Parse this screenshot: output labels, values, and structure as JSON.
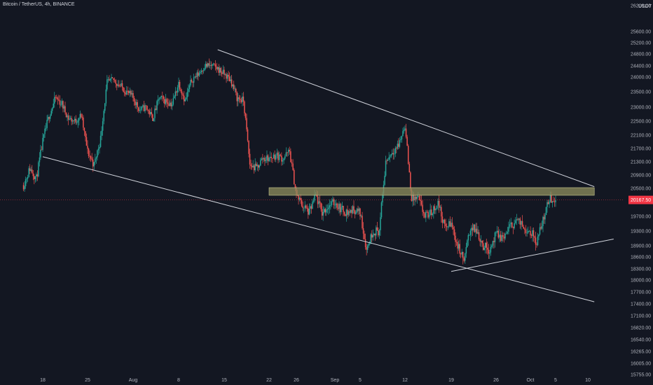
{
  "header": {
    "title": "Bitcoin / TetherUS, 4h, BINANCE",
    "currency": "USDT"
  },
  "chart_data": {
    "type": "candlestick",
    "symbol": "BTCUSDT",
    "interval": "4h",
    "exchange": "BINANCE",
    "last_price": "20167.50",
    "colors": {
      "up": "#26a69a",
      "down": "#ef5350",
      "background": "#131722",
      "trendline": "#d1d4dc",
      "zone_fill": "#8b8b5c",
      "last_price_tag": "#f23645"
    },
    "y_ticks": [
      "26200.00",
      "25600.00",
      "25200.00",
      "24800.00",
      "24400.00",
      "24000.00",
      "23500.00",
      "23000.00",
      "22500.00",
      "22100.00",
      "21700.00",
      "21300.00",
      "20900.00",
      "20500.00",
      "19700.00",
      "19300.00",
      "18900.00",
      "18600.00",
      "18300.00",
      "18000.00",
      "17700.00",
      "17400.00",
      "17100.00",
      "16820.00",
      "16540.00",
      "16265.00",
      "16005.00",
      "15755.00"
    ],
    "x_ticks": [
      "18",
      "25",
      "Aug",
      "8",
      "15",
      "22",
      "26",
      "Sep",
      "5",
      "12",
      "19",
      "26",
      "Oct",
      "5",
      "10"
    ],
    "x_range": [
      "2022-07-15",
      "2022-10-13"
    ],
    "y_range_visible": [
      15755,
      26200
    ],
    "close_path": [
      [
        "2022-07-15",
        20600
      ],
      [
        "2022-07-16",
        21100
      ],
      [
        "2022-07-17",
        20800
      ],
      [
        "2022-07-18",
        21900
      ],
      [
        "2022-07-19",
        22700
      ],
      [
        "2022-07-20",
        23300
      ],
      [
        "2022-07-21",
        23100
      ],
      [
        "2022-07-22",
        22600
      ],
      [
        "2022-07-23",
        22500
      ],
      [
        "2022-07-24",
        22700
      ],
      [
        "2022-07-25",
        21600
      ],
      [
        "2022-07-26",
        21200
      ],
      [
        "2022-07-27",
        22000
      ],
      [
        "2022-07-28",
        23800
      ],
      [
        "2022-07-29",
        23900
      ],
      [
        "2022-07-30",
        23700
      ],
      [
        "2022-07-31",
        23500
      ],
      [
        "2022-08-01",
        23300
      ],
      [
        "2022-08-02",
        22900
      ],
      [
        "2022-08-03",
        23000
      ],
      [
        "2022-08-04",
        22600
      ],
      [
        "2022-08-05",
        23300
      ],
      [
        "2022-08-06",
        23200
      ],
      [
        "2022-08-07",
        23100
      ],
      [
        "2022-08-08",
        23800
      ],
      [
        "2022-08-09",
        23200
      ],
      [
        "2022-08-10",
        23900
      ],
      [
        "2022-08-11",
        24100
      ],
      [
        "2022-08-12",
        24400
      ],
      [
        "2022-08-13",
        24400
      ],
      [
        "2022-08-14",
        24300
      ],
      [
        "2022-08-15",
        24100
      ],
      [
        "2022-08-16",
        23900
      ],
      [
        "2022-08-17",
        23300
      ],
      [
        "2022-08-18",
        23200
      ],
      [
        "2022-08-19",
        21200
      ],
      [
        "2022-08-20",
        21100
      ],
      [
        "2022-08-21",
        21400
      ],
      [
        "2022-08-22",
        21400
      ],
      [
        "2022-08-23",
        21500
      ],
      [
        "2022-08-24",
        21400
      ],
      [
        "2022-08-25",
        21600
      ],
      [
        "2022-08-26",
        20300
      ],
      [
        "2022-08-27",
        20000
      ],
      [
        "2022-08-28",
        19800
      ],
      [
        "2022-08-29",
        20300
      ],
      [
        "2022-08-30",
        19800
      ],
      [
        "2022-08-31",
        20000
      ],
      [
        "2022-09-01",
        20100
      ],
      [
        "2022-09-02",
        19900
      ],
      [
        "2022-09-03",
        19800
      ],
      [
        "2022-09-04",
        19900
      ],
      [
        "2022-09-05",
        19800
      ],
      [
        "2022-09-06",
        18800
      ],
      [
        "2022-09-07",
        19300
      ],
      [
        "2022-09-08",
        19300
      ],
      [
        "2022-09-09",
        21300
      ],
      [
        "2022-09-10",
        21600
      ],
      [
        "2022-09-11",
        21800
      ],
      [
        "2022-09-12",
        22400
      ],
      [
        "2022-09-13",
        20200
      ],
      [
        "2022-09-14",
        20200
      ],
      [
        "2022-09-15",
        19700
      ],
      [
        "2022-09-16",
        19800
      ],
      [
        "2022-09-17",
        20100
      ],
      [
        "2022-09-18",
        19400
      ],
      [
        "2022-09-19",
        19500
      ],
      [
        "2022-09-20",
        18900
      ],
      [
        "2022-09-21",
        18500
      ],
      [
        "2022-09-22",
        19400
      ],
      [
        "2022-09-23",
        19300
      ],
      [
        "2022-09-24",
        18900
      ],
      [
        "2022-09-25",
        18800
      ],
      [
        "2022-09-26",
        19200
      ],
      [
        "2022-09-27",
        19100
      ],
      [
        "2022-09-28",
        19400
      ],
      [
        "2022-09-29",
        19600
      ],
      [
        "2022-09-30",
        19400
      ],
      [
        "2022-10-01",
        19300
      ],
      [
        "2022-10-02",
        19000
      ],
      [
        "2022-10-03",
        19600
      ],
      [
        "2022-10-04",
        20200
      ],
      [
        "2022-10-05",
        20167.5
      ]
    ],
    "drawings": {
      "upper_trendline": {
        "from": [
          "2022-08-14",
          24950
        ],
        "to": [
          "2022-10-11",
          20550
        ]
      },
      "lower_trendline": {
        "from": [
          "2022-07-18",
          21450
        ],
        "to": [
          "2022-10-11",
          17450
        ]
      },
      "rising_trendline": {
        "from": [
          "2022-09-19",
          18230
        ],
        "to": [
          "2022-10-14",
          19080
        ]
      },
      "resistance_zone": {
        "from": "2022-08-22",
        "to": "2022-10-11",
        "top": 20520,
        "bottom": 20300
      },
      "last_price_line": 20167.5
    }
  }
}
